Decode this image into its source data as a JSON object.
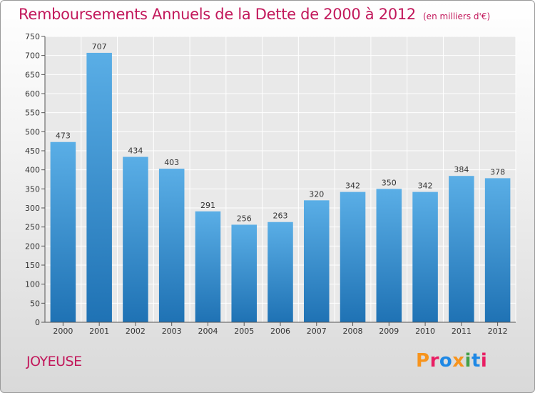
{
  "header": {
    "title": "Remboursements Annuels de la Dette de 2000 à 2012",
    "unit": "(en milliers d'€)"
  },
  "footer": {
    "place": "JOYEUSE",
    "logo_text": "Proxiti"
  },
  "colors": {
    "title": "#c2185b",
    "bar_top": "#5aaee6",
    "bar_bottom": "#1f72b4"
  },
  "chart_data": {
    "type": "bar",
    "categories": [
      "2000",
      "2001",
      "2002",
      "2003",
      "2004",
      "2005",
      "2006",
      "2007",
      "2008",
      "2009",
      "2010",
      "2011",
      "2012"
    ],
    "values": [
      473,
      707,
      434,
      403,
      291,
      256,
      263,
      320,
      342,
      350,
      342,
      384,
      378
    ],
    "ylim": [
      0,
      750
    ],
    "ytick_step": 50,
    "grid": true,
    "data_labels": true
  }
}
